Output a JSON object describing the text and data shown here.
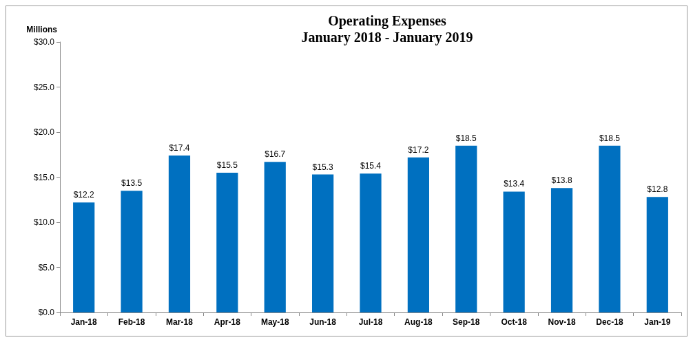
{
  "chart_data": {
    "type": "bar",
    "title": "Operating Expenses",
    "subtitle": "January 2018 - January 2019",
    "ylabel": "Millions",
    "categories": [
      "Jan-18",
      "Feb-18",
      "Mar-18",
      "Apr-18",
      "May-18",
      "Jun-18",
      "Jul-18",
      "Aug-18",
      "Sep-18",
      "Oct-18",
      "Nov-18",
      "Dec-18",
      "Jan-19"
    ],
    "values": [
      12.2,
      13.5,
      17.4,
      15.5,
      16.7,
      15.3,
      15.4,
      17.2,
      18.5,
      13.4,
      13.8,
      18.5,
      12.8
    ],
    "value_labels": [
      "$12.2",
      "$13.5",
      "$17.4",
      "$15.5",
      "$16.7",
      "$15.3",
      "$15.4",
      "$17.2",
      "$18.5",
      "$13.4",
      "$13.8",
      "$18.5",
      "$12.8"
    ],
    "color": "#0070c0",
    "ylim": [
      0,
      30
    ],
    "yticks": [
      {
        "value": 0,
        "label": "$0.0"
      },
      {
        "value": 5,
        "label": "$5.0"
      },
      {
        "value": 10,
        "label": "$10.0"
      },
      {
        "value": 15,
        "label": "$15.0"
      },
      {
        "value": 20,
        "label": "$20.0"
      },
      {
        "value": 25,
        "label": "$25.0"
      },
      {
        "value": 30,
        "label": "$30.0"
      }
    ],
    "grid": false
  }
}
